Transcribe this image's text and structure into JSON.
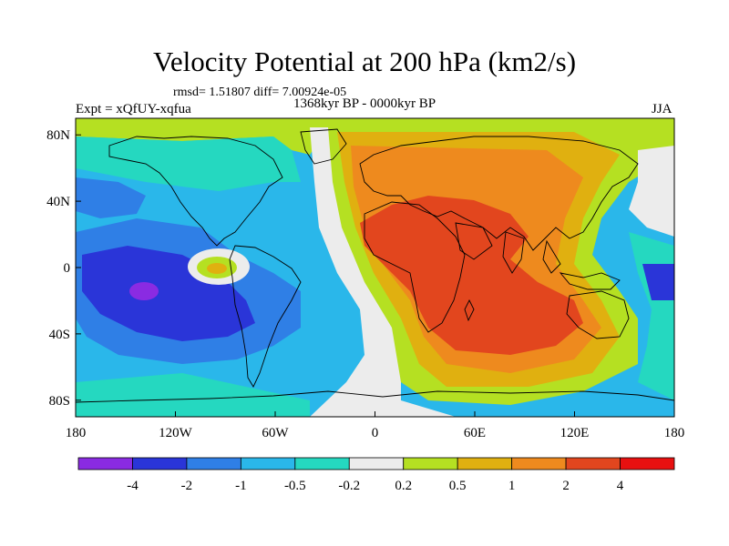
{
  "title": "Velocity Potential at 200 hPa (km2/s)",
  "stats_line": "rmsd= 1.51807 diff= 7.00924e-05",
  "period_line": "1368kyr BP - 0000kyr BP",
  "experiment_label": "Expt = xQfUY-xqfua",
  "season_label": "JJA",
  "map": {
    "projection": "cylindrical equidistant",
    "lon_range": [
      -180,
      180
    ],
    "lat_range": [
      -90,
      90
    ],
    "lon_ticks": [
      {
        "lon": -180,
        "label": "180"
      },
      {
        "lon": -120,
        "label": "120W"
      },
      {
        "lon": -60,
        "label": "60W"
      },
      {
        "lon": 0,
        "label": "0"
      },
      {
        "lon": 60,
        "label": "60E"
      },
      {
        "lon": 120,
        "label": "120E"
      },
      {
        "lon": 180,
        "label": "180"
      }
    ],
    "lat_ticks": [
      {
        "lat": 80,
        "label": "80N"
      },
      {
        "lat": 40,
        "label": "40N"
      },
      {
        "lat": 0,
        "label": "0"
      },
      {
        "lat": -40,
        "label": "40S"
      },
      {
        "lat": -80,
        "label": "80S"
      }
    ]
  },
  "colorbar": {
    "colors": [
      "#8a2be2",
      "#2a35d8",
      "#2f7fe6",
      "#2ab7ea",
      "#25d8c0",
      "#ececec",
      "#b5e022",
      "#e0b010",
      "#ee8a1e",
      "#e2461e",
      "#e81010"
    ],
    "labels": [
      "-4",
      "-2",
      "-1",
      "-0.5",
      "-0.2",
      "0.2",
      "0.5",
      "1",
      "2",
      "4"
    ]
  }
}
